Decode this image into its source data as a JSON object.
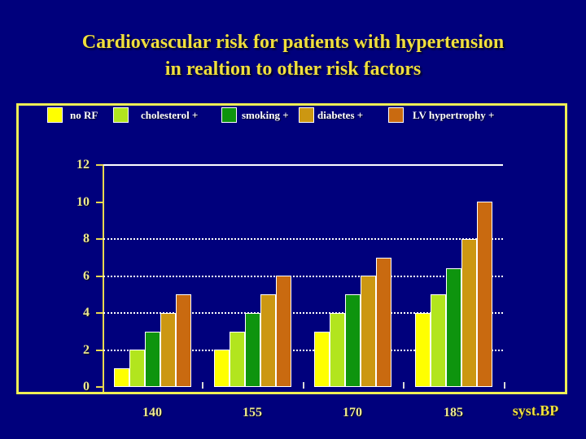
{
  "title": {
    "line1": "Cardiovascular risk for patients with hypertension",
    "line2": "in realtion to other risk factors"
  },
  "colors": {
    "background": "#00007C",
    "frame_border": "#EFEF55",
    "title": "#F0DF3C",
    "axis": "#E9D94F",
    "tick_label": "#EFEA90",
    "legend_text": "#FFFFFF",
    "gridline": "#FFFFFF",
    "bar_outline": "#FFFFFF",
    "x_axis_title": "#F0DF3C"
  },
  "chart_data": {
    "type": "bar",
    "title": "Cardiovascular risk for patients with hypertension in realtion to other risk factors",
    "categories": [
      "140",
      "155",
      "170",
      "185"
    ],
    "series": [
      {
        "name": "no RF",
        "color": "#FFFF00",
        "values": [
          1,
          2,
          3,
          4
        ]
      },
      {
        "name": "cholesterol +",
        "color": "#B2E51E",
        "values": [
          2,
          3,
          4,
          5
        ]
      },
      {
        "name": "smoking +",
        "color": "#0E940E",
        "values": [
          3,
          4,
          5,
          6.4
        ]
      },
      {
        "name": "diabetes +",
        "color": "#CC9712",
        "values": [
          4,
          5,
          6,
          8
        ]
      },
      {
        "name": "LV hypertrophy +",
        "color": "#C96A10",
        "values": [
          5,
          6,
          7,
          10
        ]
      }
    ],
    "xlabel": "syst.BP",
    "ylabel": "",
    "ylim": [
      0,
      12
    ],
    "yticks": [
      0,
      2,
      4,
      6,
      8,
      10,
      12
    ],
    "gridlines": {
      "dotted_at": [
        2,
        4,
        6,
        8
      ],
      "solid_at": [
        12
      ]
    },
    "legend_position": "top"
  }
}
